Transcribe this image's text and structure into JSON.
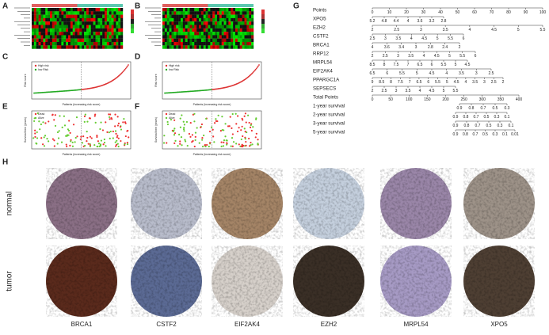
{
  "panel_labels": [
    "A",
    "B",
    "C",
    "D",
    "E",
    "F",
    "G",
    "H"
  ],
  "risk_plots": {
    "legend": [
      "High risk",
      "low Risk"
    ],
    "x_label": "Patients (increasing risk score)",
    "y_label": "Risk score"
  },
  "survival_plots": {
    "legend": [
      "Dead",
      "Alive"
    ],
    "x_label": "Patients (increasing risk score)",
    "y_label": "Survival time (years)"
  },
  "nomogram": {
    "rows": [
      {
        "label": "Points",
        "ticks": [
          "0",
          "10",
          "20",
          "30",
          "40",
          "50",
          "60",
          "70",
          "80",
          "90",
          "100"
        ]
      },
      {
        "label": "XPO5",
        "ticks": [
          "5.2",
          "4.8",
          "4.4",
          "4",
          "3.6",
          "3.2",
          "2.8"
        ]
      },
      {
        "label": "EZH2",
        "ticks": [
          "2",
          "2.5",
          "3",
          "3.5",
          "4",
          "4.5",
          "5",
          "5.5"
        ]
      },
      {
        "label": "CSTF2",
        "ticks": [
          "2.5",
          "3",
          "3.5",
          "4",
          "4.5",
          "5",
          "5.5",
          "6"
        ]
      },
      {
        "label": "BRCA1",
        "ticks": [
          "4",
          "3.6",
          "3.4",
          "3",
          "2.8",
          "2.4",
          "2"
        ]
      },
      {
        "label": "RRP12",
        "ticks": [
          "2",
          "2.5",
          "3",
          "3.5",
          "4",
          "4.5",
          "5",
          "5.5",
          "6"
        ]
      },
      {
        "label": "MRPL54",
        "ticks": [
          "8.5",
          "8",
          "7.5",
          "7",
          "6.5",
          "6",
          "5.5",
          "5",
          "4.5"
        ]
      },
      {
        "label": "EIF2AK4",
        "ticks": [
          "6.5",
          "6",
          "5.5",
          "5",
          "4.5",
          "4",
          "3.5",
          "3",
          "2.5"
        ]
      },
      {
        "label": "PPARGC1A",
        "ticks": [
          "9",
          "8.5",
          "8",
          "7.5",
          "7",
          "6.5",
          "6",
          "5.5",
          "5",
          "4.5",
          "4",
          "3.5",
          "3",
          "2.5",
          "2"
        ]
      },
      {
        "label": "SEPSECS",
        "ticks": [
          "2",
          "2.5",
          "3",
          "3.5",
          "4",
          "4.5",
          "5",
          "5.5"
        ]
      },
      {
        "label": "Total Points",
        "ticks": [
          "0",
          "50",
          "100",
          "150",
          "200",
          "250",
          "300",
          "350",
          "400"
        ]
      },
      {
        "label": "1-year survival",
        "ticks": [
          "0.9",
          "0.8",
          "0.7",
          "0.5",
          "0.3"
        ]
      },
      {
        "label": "2-year survival",
        "ticks": [
          "0.9",
          "0.8",
          "0.7",
          "0.5",
          "0.3",
          "0.1"
        ]
      },
      {
        "label": "3-year survival",
        "ticks": [
          "0.9",
          "0.8",
          "0.7",
          "0.5",
          "0.3",
          "0.1"
        ]
      },
      {
        "label": "5-year survival",
        "ticks": [
          "0.9",
          "0.8",
          "0.7",
          "0.5",
          "0.3",
          "0.1",
          "0.01"
        ]
      }
    ]
  },
  "ihc": {
    "row_labels": [
      "normal",
      "tumor"
    ],
    "genes": [
      "BRCA1",
      "CSTF2",
      "EIF2AK4",
      "EZH2",
      "MRPL54",
      "XPO5"
    ]
  }
}
